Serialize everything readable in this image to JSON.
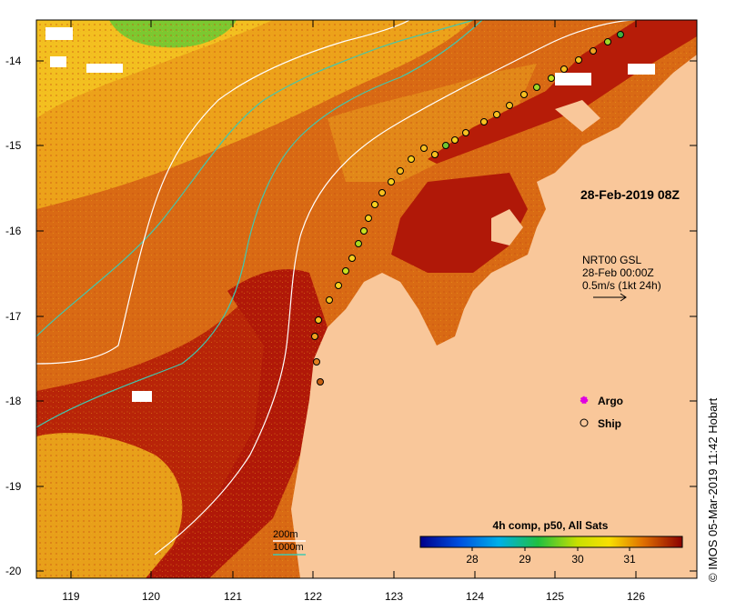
{
  "map": {
    "event_label": "28-Feb-2019 08Z",
    "current_info": {
      "line1": "NRT00 GSL",
      "line2": "28-Feb 00:00Z",
      "line3": "0.5m/s (1kt 24h)"
    },
    "contour_legend": {
      "line1": "200m",
      "line2": "1000m"
    },
    "legend_items": [
      {
        "label": "Argo",
        "symbol": "magenta-dot",
        "color": "#e000e0"
      },
      {
        "label": "Ship",
        "symbol": "open-circle",
        "color": "#000000"
      }
    ],
    "colorbar": {
      "title": "4h comp, p50, All Sats",
      "ticks": [
        "28",
        "29",
        "30",
        "31"
      ],
      "range": [
        27,
        32
      ]
    },
    "credit": "© IMOS 05-Mar-2019 11:42 Hobart",
    "x_axis": {
      "labels": [
        "119",
        "120",
        "121",
        "122",
        "123",
        "124",
        "125",
        "126"
      ],
      "range": [
        118.6,
        126.7
      ]
    },
    "y_axis": {
      "labels": [
        "-14",
        "-15",
        "-16",
        "-17",
        "-18",
        "-19",
        "-20"
      ],
      "range": [
        -20.1,
        -13.5
      ]
    },
    "colors": {
      "land": "#f9c79a",
      "sea_warm": "#b01808",
      "sea_mid": "#d76010",
      "sea_cool": "#f0a818",
      "contour_200m": "#ffffff",
      "contour_1000m": "#40c8b0"
    }
  }
}
